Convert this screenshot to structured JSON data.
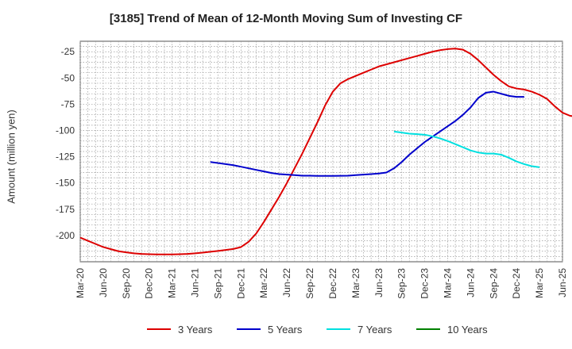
{
  "chart_data": {
    "type": "line",
    "title": "[3185]  Trend of Mean of 12-Month Moving Sum of Investing CF",
    "ylabel": "Amount (million yen)",
    "xlabel": "",
    "ylim": [
      -225,
      -15
    ],
    "yticks": [
      -25,
      -50,
      -75,
      -100,
      -125,
      -150,
      -175,
      -200
    ],
    "xtick_labels": [
      "Mar-20",
      "Jun-20",
      "Sep-20",
      "Dec-20",
      "Mar-21",
      "Jun-21",
      "Sep-21",
      "Dec-21",
      "Mar-22",
      "Jun-22",
      "Sep-22",
      "Dec-22",
      "Mar-23",
      "Jun-23",
      "Sep-23",
      "Dec-23",
      "Mar-24",
      "Jun-24",
      "Sep-24",
      "Dec-24",
      "Mar-25",
      "Jun-25"
    ],
    "grid": true,
    "legend_position": "bottom",
    "series": [
      {
        "name": "3 Years",
        "color": "#dd0000",
        "start": "Mar-20",
        "values": [
          -202,
          -205,
          -208,
          -211,
          -213,
          -215,
          -216,
          -217,
          -217.5,
          -217.8,
          -218,
          -218,
          -218,
          -217.8,
          -217.5,
          -217,
          -216.3,
          -215.5,
          -214.7,
          -213.8,
          -212.8,
          -211,
          -206,
          -198,
          -187,
          -175,
          -163,
          -150,
          -136,
          -122,
          -107,
          -92,
          -76,
          -63,
          -55,
          -51,
          -48,
          -45,
          -42,
          -39,
          -37,
          -35,
          -33,
          -31,
          -29,
          -27,
          -25,
          -23.5,
          -22.5,
          -22,
          -23,
          -27,
          -33,
          -40,
          -47,
          -53,
          -58,
          -60,
          -61,
          -63,
          -66,
          -70,
          -77,
          -83,
          -86,
          -87
        ]
      },
      {
        "name": "5 Years",
        "color": "#0000cc",
        "start": "Aug-21",
        "values": [
          -130,
          -131,
          -132,
          -133,
          -134.5,
          -136,
          -137.5,
          -139,
          -140.5,
          -141.5,
          -142,
          -142.5,
          -143,
          -143,
          -143.2,
          -143.2,
          -143.2,
          -143.1,
          -143,
          -142.5,
          -142,
          -141.5,
          -141,
          -140,
          -136,
          -130,
          -123,
          -117,
          -111,
          -106,
          -101,
          -96,
          -91,
          -85,
          -78,
          -69,
          -64,
          -63,
          -65,
          -67,
          -68,
          -68
        ]
      },
      {
        "name": "7 Years",
        "color": "#00e0e0",
        "start": "Aug-23",
        "values": [
          -101,
          -102,
          -103,
          -103.5,
          -104,
          -105.5,
          -107.5,
          -110,
          -113,
          -116,
          -119,
          -121,
          -122,
          -122,
          -123,
          -126,
          -129.5,
          -132,
          -134,
          -135
        ]
      },
      {
        "name": "10 Years",
        "color": "#008000",
        "start": "Aug-23",
        "values": []
      }
    ]
  }
}
